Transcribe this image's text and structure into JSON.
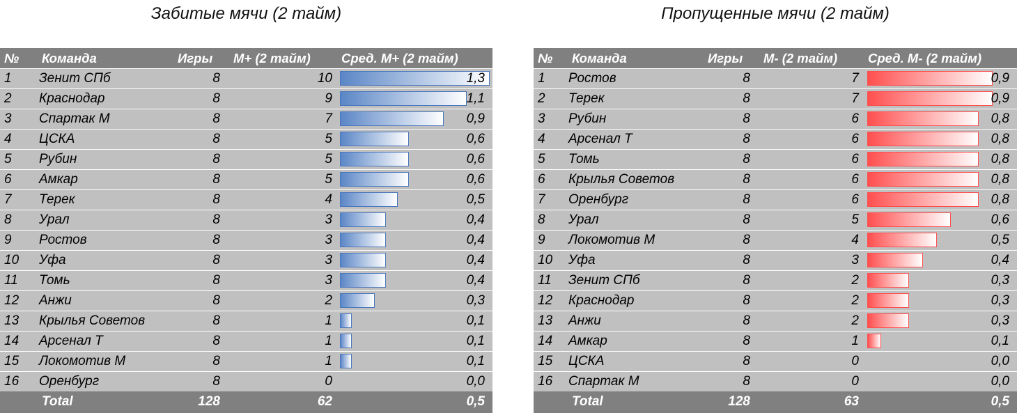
{
  "chart_data": [
    {
      "type": "table",
      "title": "Забитые мячи (2 тайм)",
      "columns": [
        "№",
        "Команда",
        "Игры",
        "М+ (2 тайм)",
        "Сред. М+ (2 тайм)"
      ],
      "bar_color": "#5b86c6",
      "bar_max": 1.3,
      "rows": [
        {
          "n": "1",
          "team": "Зенит СПб",
          "games": "8",
          "goals": "10",
          "avg": "1,3",
          "avg_value": 1.3
        },
        {
          "n": "2",
          "team": "Краснодар",
          "games": "8",
          "goals": "9",
          "avg": "1,1",
          "avg_value": 1.1
        },
        {
          "n": "3",
          "team": "Спартак М",
          "games": "8",
          "goals": "7",
          "avg": "0,9",
          "avg_value": 0.9
        },
        {
          "n": "4",
          "team": "ЦСКА",
          "games": "8",
          "goals": "5",
          "avg": "0,6",
          "avg_value": 0.6
        },
        {
          "n": "5",
          "team": "Рубин",
          "games": "8",
          "goals": "5",
          "avg": "0,6",
          "avg_value": 0.6
        },
        {
          "n": "6",
          "team": "Амкар",
          "games": "8",
          "goals": "5",
          "avg": "0,6",
          "avg_value": 0.6
        },
        {
          "n": "7",
          "team": "Терек",
          "games": "8",
          "goals": "4",
          "avg": "0,5",
          "avg_value": 0.5
        },
        {
          "n": "8",
          "team": "Урал",
          "games": "8",
          "goals": "3",
          "avg": "0,4",
          "avg_value": 0.4
        },
        {
          "n": "9",
          "team": "Ростов",
          "games": "8",
          "goals": "3",
          "avg": "0,4",
          "avg_value": 0.4
        },
        {
          "n": "10",
          "team": "Уфа",
          "games": "8",
          "goals": "3",
          "avg": "0,4",
          "avg_value": 0.4
        },
        {
          "n": "11",
          "team": "Томь",
          "games": "8",
          "goals": "3",
          "avg": "0,4",
          "avg_value": 0.4
        },
        {
          "n": "12",
          "team": "Анжи",
          "games": "8",
          "goals": "2",
          "avg": "0,3",
          "avg_value": 0.3
        },
        {
          "n": "13",
          "team": "Крылья Советов",
          "games": "8",
          "goals": "1",
          "avg": "0,1",
          "avg_value": 0.1
        },
        {
          "n": "14",
          "team": "Арсенал Т",
          "games": "8",
          "goals": "1",
          "avg": "0,1",
          "avg_value": 0.1
        },
        {
          "n": "15",
          "team": "Локомотив М",
          "games": "8",
          "goals": "1",
          "avg": "0,1",
          "avg_value": 0.1
        },
        {
          "n": "16",
          "team": "Оренбург",
          "games": "8",
          "goals": "0",
          "avg": "0,0",
          "avg_value": 0.0
        }
      ],
      "total": {
        "label": "Total",
        "games": "128",
        "goals": "62",
        "avg": "0,5"
      }
    },
    {
      "type": "table",
      "title": "Пропущенные мячи (2 тайм)",
      "columns": [
        "№",
        "Команда",
        "Игры",
        "М- (2 тайм)",
        "Сред. М- (2 тайм)"
      ],
      "bar_color": "#ff4f4f",
      "bar_max": 0.9,
      "rows": [
        {
          "n": "1",
          "team": "Ростов",
          "games": "8",
          "goals": "7",
          "avg": "0,9",
          "avg_value": 0.9
        },
        {
          "n": "2",
          "team": "Терек",
          "games": "8",
          "goals": "7",
          "avg": "0,9",
          "avg_value": 0.9
        },
        {
          "n": "3",
          "team": "Рубин",
          "games": "8",
          "goals": "6",
          "avg": "0,8",
          "avg_value": 0.8
        },
        {
          "n": "4",
          "team": "Арсенал Т",
          "games": "8",
          "goals": "6",
          "avg": "0,8",
          "avg_value": 0.8
        },
        {
          "n": "5",
          "team": "Томь",
          "games": "8",
          "goals": "6",
          "avg": "0,8",
          "avg_value": 0.8
        },
        {
          "n": "6",
          "team": "Крылья Советов",
          "games": "8",
          "goals": "6",
          "avg": "0,8",
          "avg_value": 0.8
        },
        {
          "n": "7",
          "team": "Оренбург",
          "games": "8",
          "goals": "6",
          "avg": "0,8",
          "avg_value": 0.8
        },
        {
          "n": "8",
          "team": "Урал",
          "games": "8",
          "goals": "5",
          "avg": "0,6",
          "avg_value": 0.6
        },
        {
          "n": "9",
          "team": "Локомотив М",
          "games": "8",
          "goals": "4",
          "avg": "0,5",
          "avg_value": 0.5
        },
        {
          "n": "10",
          "team": "Уфа",
          "games": "8",
          "goals": "3",
          "avg": "0,4",
          "avg_value": 0.4
        },
        {
          "n": "11",
          "team": "Зенит СПб",
          "games": "8",
          "goals": "2",
          "avg": "0,3",
          "avg_value": 0.3
        },
        {
          "n": "12",
          "team": "Краснодар",
          "games": "8",
          "goals": "2",
          "avg": "0,3",
          "avg_value": 0.3
        },
        {
          "n": "13",
          "team": "Анжи",
          "games": "8",
          "goals": "2",
          "avg": "0,3",
          "avg_value": 0.3
        },
        {
          "n": "14",
          "team": "Амкар",
          "games": "8",
          "goals": "1",
          "avg": "0,1",
          "avg_value": 0.1
        },
        {
          "n": "15",
          "team": "ЦСКА",
          "games": "8",
          "goals": "0",
          "avg": "0,0",
          "avg_value": 0.0
        },
        {
          "n": "16",
          "team": "Спартак М",
          "games": "8",
          "goals": "0",
          "avg": "0,0",
          "avg_value": 0.0
        }
      ],
      "total": {
        "label": "Total",
        "games": "128",
        "goals": "63",
        "avg": "0,5"
      }
    }
  ]
}
